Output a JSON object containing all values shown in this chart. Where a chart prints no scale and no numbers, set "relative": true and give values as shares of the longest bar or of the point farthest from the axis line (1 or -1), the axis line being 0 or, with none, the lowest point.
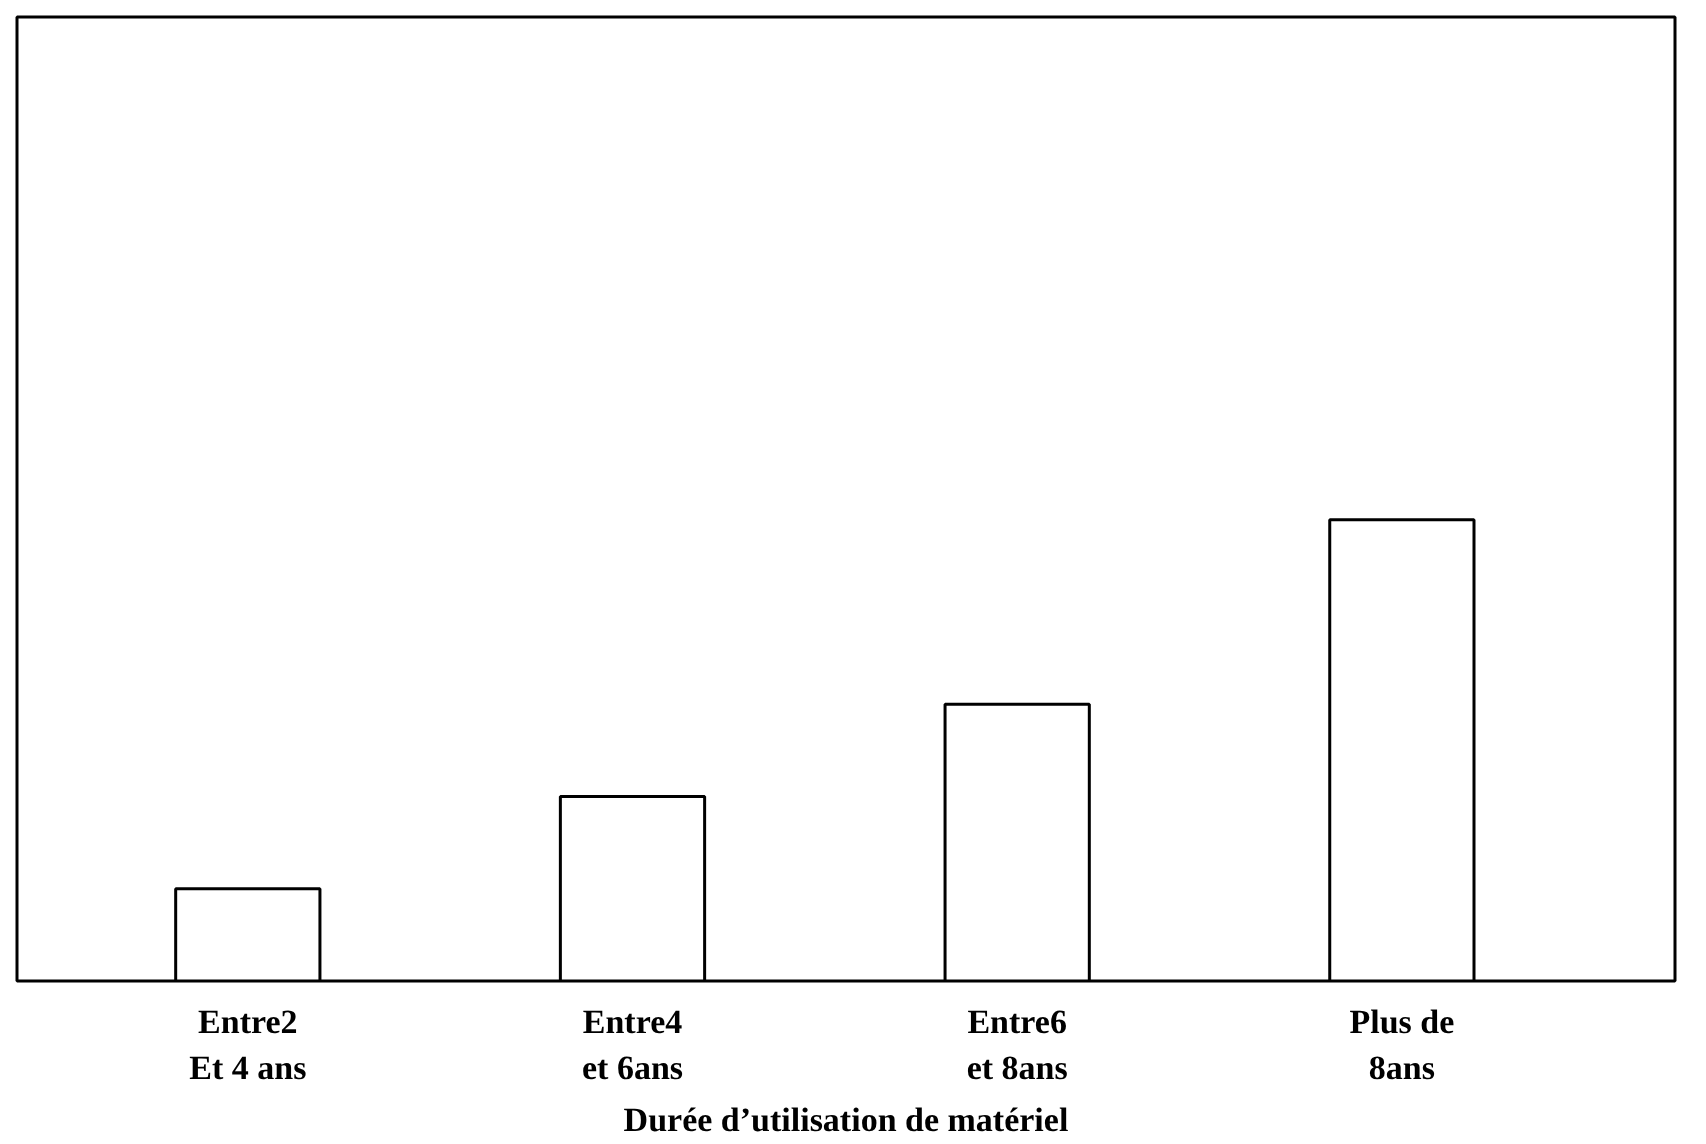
{
  "chart_data": {
    "type": "bar",
    "relative": true,
    "categories": [
      "Entre2\nEt 4 ans",
      "Entre4\net 6ans",
      "Entre6\net 8ans",
      "Plus de\n8ans"
    ],
    "values": [
      0.2,
      0.4,
      0.6,
      1.0
    ],
    "color": "#ffffff",
    "xlabel": "Durée d’utilisation de matériel",
    "grid": false
  }
}
